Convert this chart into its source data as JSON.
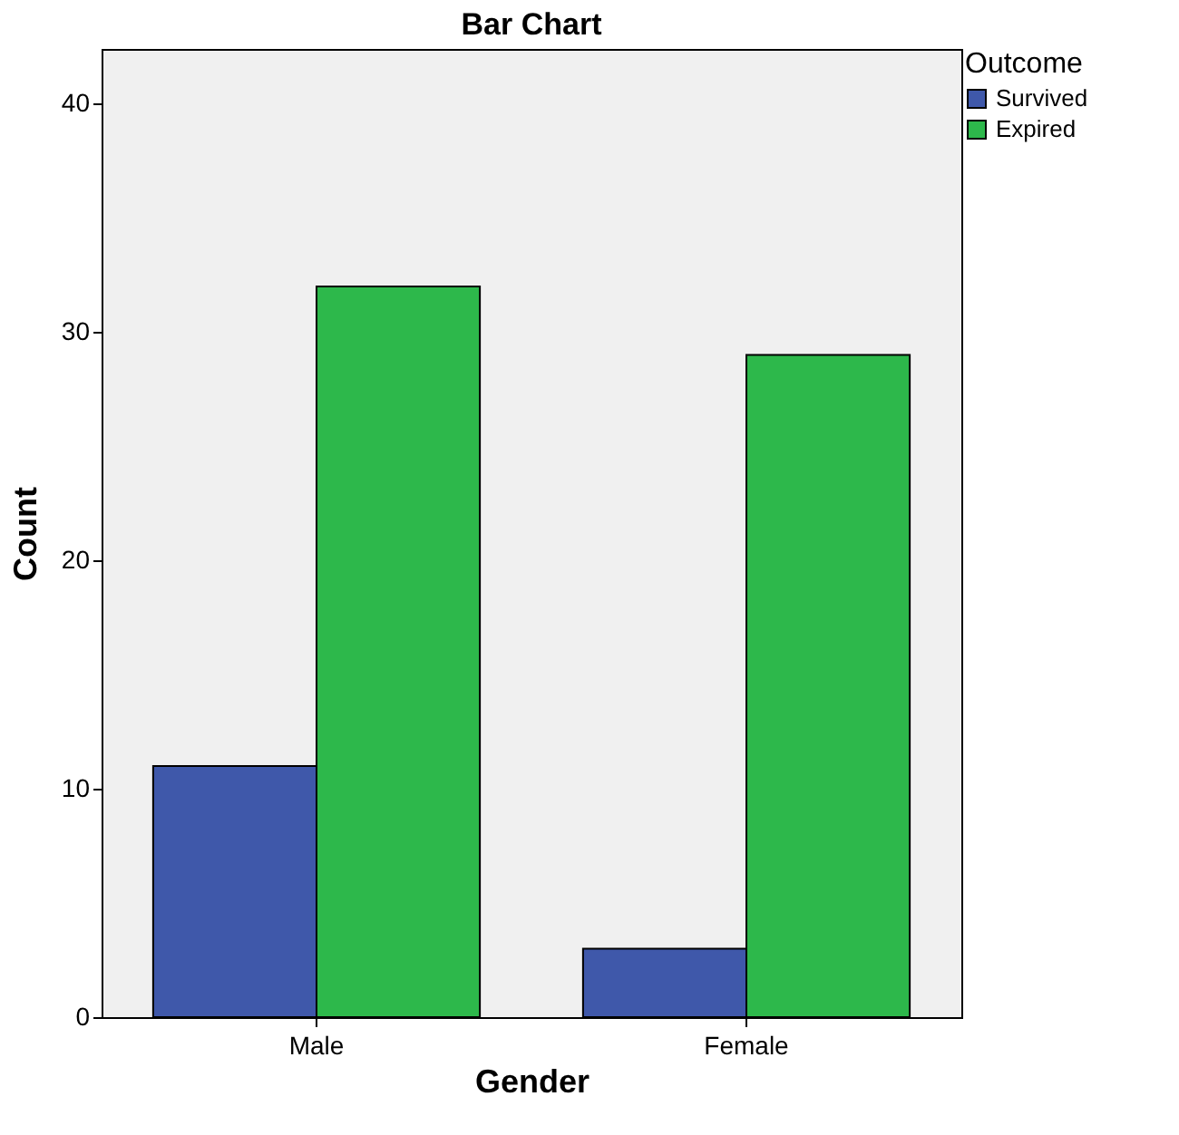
{
  "chart_data": {
    "type": "bar",
    "title": "Bar Chart",
    "xlabel": "Gender",
    "ylabel": "Count",
    "legend_title": "Outcome",
    "legend": "right",
    "categories": [
      "Male",
      "Female"
    ],
    "series": [
      {
        "name": "Survived",
        "color": "#3f58aa",
        "values": [
          11,
          3
        ]
      },
      {
        "name": "Expired",
        "color": "#2db84b",
        "values": [
          32,
          29
        ]
      }
    ],
    "ylim": [
      0,
      42.4
    ],
    "yticks": [
      0,
      10,
      20,
      30,
      40
    ],
    "grid": false
  }
}
